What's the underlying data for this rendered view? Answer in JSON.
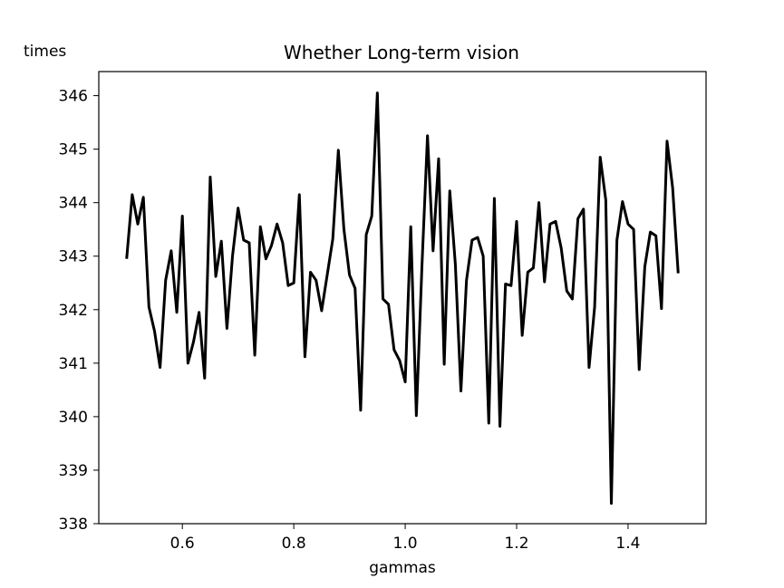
{
  "chart_data": {
    "type": "line",
    "title": "Whether Long-term vision",
    "xlabel": "gammas",
    "ylabel": "times",
    "xlim": [
      0.45,
      1.54
    ],
    "ylim": [
      338,
      346.45
    ],
    "x_ticks": [
      0.6,
      0.8,
      1.0,
      1.2,
      1.4
    ],
    "x_tick_labels": [
      "0.6",
      "0.8",
      "1.0",
      "1.2",
      "1.4"
    ],
    "y_ticks": [
      338,
      339,
      340,
      341,
      342,
      343,
      344,
      345,
      346
    ],
    "y_tick_labels": [
      "338",
      "339",
      "340",
      "341",
      "342",
      "343",
      "344",
      "345",
      "346"
    ],
    "grid": false,
    "legend": "none",
    "series": [
      {
        "color": "#000000",
        "x": [
          0.5,
          0.51,
          0.52,
          0.53,
          0.54,
          0.55,
          0.56,
          0.57,
          0.58,
          0.59,
          0.6,
          0.61,
          0.62,
          0.63,
          0.64,
          0.65,
          0.66,
          0.67,
          0.68,
          0.69,
          0.7,
          0.71,
          0.72,
          0.73,
          0.74,
          0.75,
          0.76,
          0.77,
          0.78,
          0.79,
          0.8,
          0.81,
          0.82,
          0.83,
          0.84,
          0.85,
          0.86,
          0.87,
          0.88,
          0.89,
          0.9,
          0.91,
          0.92,
          0.93,
          0.94,
          0.95,
          0.96,
          0.97,
          0.98,
          0.99,
          1.0,
          1.01,
          1.02,
          1.03,
          1.04,
          1.05,
          1.06,
          1.07,
          1.08,
          1.09,
          1.1,
          1.11,
          1.12,
          1.13,
          1.14,
          1.15,
          1.16,
          1.17,
          1.18,
          1.19,
          1.2,
          1.21,
          1.22,
          1.23,
          1.24,
          1.25,
          1.26,
          1.27,
          1.28,
          1.29,
          1.3,
          1.31,
          1.32,
          1.33,
          1.34,
          1.35,
          1.36,
          1.37,
          1.38,
          1.39,
          1.4,
          1.41,
          1.42,
          1.43,
          1.44,
          1.45,
          1.46,
          1.47,
          1.48,
          1.49
        ],
        "values": [
          342.95,
          344.15,
          343.6,
          344.1,
          342.05,
          341.6,
          340.92,
          342.55,
          343.1,
          341.95,
          343.75,
          341.0,
          341.4,
          341.95,
          340.72,
          344.48,
          342.62,
          343.28,
          341.65,
          343.0,
          343.9,
          343.3,
          343.25,
          341.15,
          343.55,
          342.95,
          343.2,
          343.6,
          343.25,
          342.45,
          342.5,
          344.15,
          341.12,
          342.7,
          342.55,
          341.98,
          342.65,
          343.32,
          344.98,
          343.5,
          342.65,
          342.4,
          340.12,
          343.4,
          343.75,
          346.05,
          342.2,
          342.1,
          341.25,
          341.05,
          340.65,
          343.55,
          340.02,
          342.8,
          345.25,
          343.1,
          344.82,
          340.98,
          344.22,
          342.85,
          340.48,
          342.55,
          343.3,
          343.35,
          343.0,
          339.88,
          344.08,
          339.82,
          342.48,
          342.45,
          343.65,
          341.52,
          342.7,
          342.78,
          344.0,
          342.52,
          343.6,
          343.65,
          343.15,
          342.35,
          342.2,
          343.7,
          343.88,
          340.92,
          342.05,
          344.85,
          344.05,
          338.38,
          343.3,
          344.02,
          343.6,
          343.5,
          340.88,
          342.8,
          343.45,
          343.38,
          342.02,
          345.15,
          344.28,
          342.68
        ]
      }
    ]
  }
}
